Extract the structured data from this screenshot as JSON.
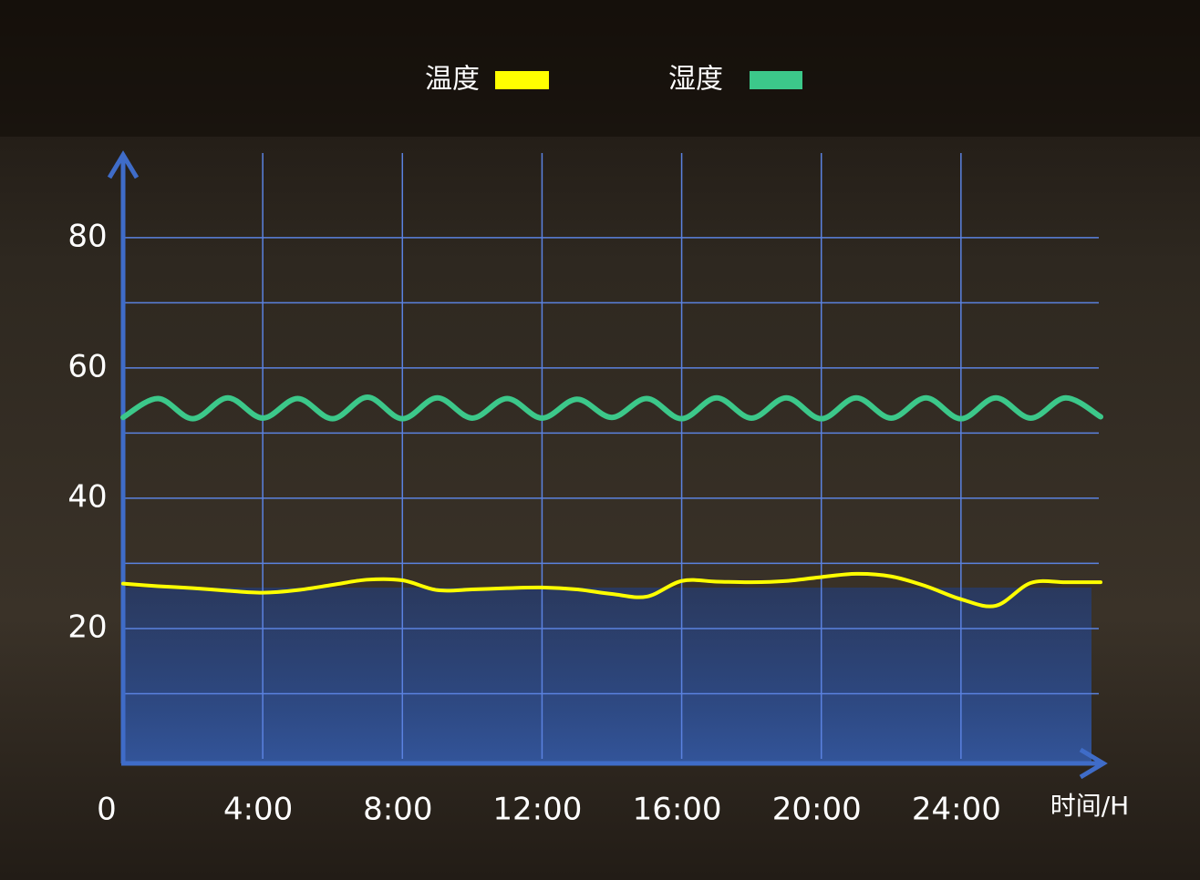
{
  "chart_data": {
    "type": "line",
    "x": [
      0,
      1,
      2,
      3,
      4,
      5,
      6,
      7,
      8,
      9,
      10,
      11,
      12,
      13,
      14,
      15,
      16,
      17,
      18,
      19,
      20,
      21,
      22,
      23,
      24,
      25,
      26,
      27,
      28
    ],
    "series": [
      {
        "name": "温度",
        "color": "#ffff00",
        "values": [
          26.9,
          26.5,
          26.2,
          25.8,
          25.5,
          25.9,
          26.7,
          27.5,
          27.4,
          25.9,
          26.0,
          26.2,
          26.3,
          26.0,
          25.3,
          24.9,
          27.3,
          27.2,
          27.1,
          27.3,
          27.9,
          28.4,
          28.0,
          26.5,
          24.5,
          23.5,
          27.0,
          27.1,
          27.1
        ]
      },
      {
        "name": "湿度",
        "color": "#3cc88a",
        "values": [
          52.4,
          55.3,
          52.2,
          55.4,
          52.3,
          55.3,
          52.2,
          55.5,
          52.2,
          55.4,
          52.3,
          55.3,
          52.3,
          55.2,
          52.4,
          55.3,
          52.2,
          55.4,
          52.3,
          55.4,
          52.2,
          55.4,
          52.3,
          55.4,
          52.2,
          55.4,
          52.3,
          55.4,
          52.5
        ]
      }
    ],
    "xlim": [
      0,
      28
    ],
    "xticks": [
      0,
      {
        "value": 4,
        "label": "4:00"
      },
      {
        "value": 8,
        "label": "8:00"
      },
      {
        "value": 12,
        "label": "12:00"
      },
      {
        "value": 16,
        "label": "16:00"
      },
      {
        "value": 20,
        "label": "20:00"
      },
      {
        "value": 24,
        "label": "24:00"
      }
    ],
    "x_label": "时间/H",
    "ylim": [
      0,
      92
    ],
    "yticks": [
      20,
      40,
      60,
      80
    ],
    "minor_yticks": [
      10,
      30,
      50,
      70
    ],
    "grid": true
  }
}
